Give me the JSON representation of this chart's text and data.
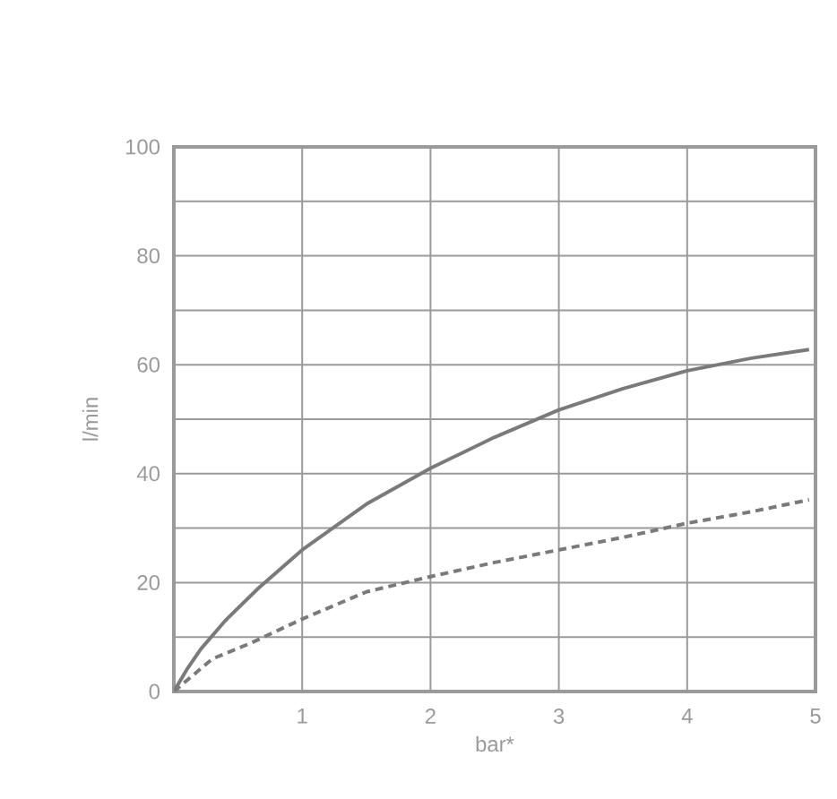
{
  "chart_data": {
    "type": "line",
    "xlabel": "bar*",
    "ylabel": "l/min",
    "xlim": [
      0,
      5
    ],
    "xticks": [
      1,
      2,
      3,
      4,
      5
    ],
    "ylim": [
      0,
      100
    ],
    "yticks": [
      0,
      {
        "value": 10,
        "label": null
      },
      20,
      {
        "value": 30,
        "label": null
      },
      40,
      {
        "value": 50,
        "label": null
      },
      60,
      {
        "value": 70,
        "label": null
      },
      80,
      {
        "value": 90,
        "label": null
      },
      100
    ],
    "grid": true,
    "series": [
      {
        "color": "#7a7a7a",
        "line_style": "solid",
        "x": [
          0,
          0.1,
          0.21,
          0.4,
          0.66,
          1,
          1.5,
          2,
          2.5,
          3,
          3.5,
          4,
          4.5,
          4.95
        ],
        "values": [
          0,
          4,
          7.8,
          13,
          19,
          26,
          34.4,
          41,
          46.7,
          51.7,
          55.6,
          58.9,
          61.2,
          62.8
        ]
      },
      {
        "color": "#7a7a7a",
        "line_style": "dashed",
        "x": [
          0,
          0.3,
          0.6,
          1,
          1.5,
          2,
          2.5,
          3,
          3.5,
          4,
          4.5,
          4.95
        ],
        "values": [
          0,
          6,
          8.9,
          13.3,
          18.3,
          21.1,
          23.7,
          26,
          28.3,
          30.9,
          33,
          35.2
        ]
      }
    ]
  }
}
